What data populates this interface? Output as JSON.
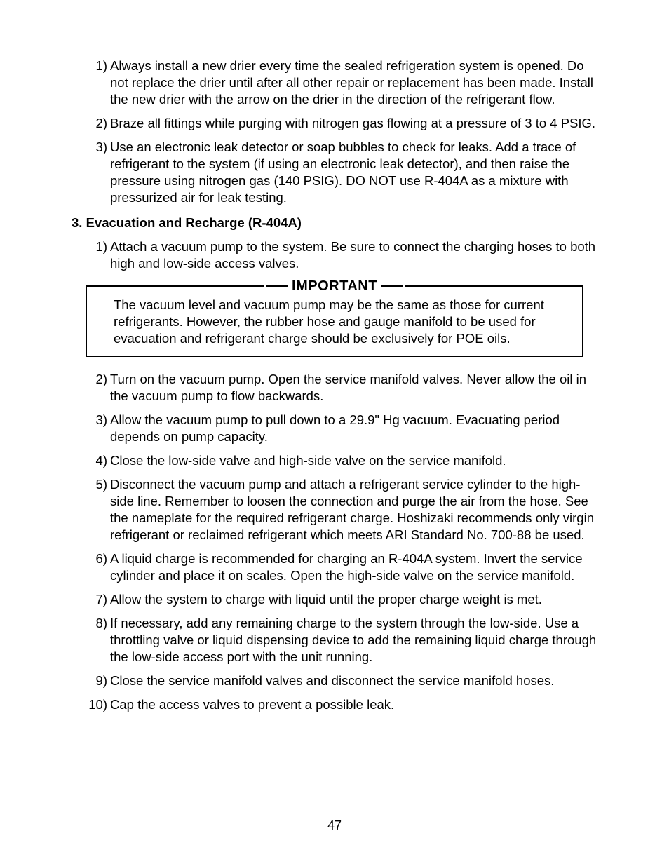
{
  "page_number": "47",
  "colors": {
    "text": "#000000",
    "background": "#ffffff",
    "rule": "#000000"
  },
  "typography": {
    "family": "Arial",
    "body_size_pt": 14,
    "heading_weight": "bold"
  },
  "top_list": [
    {
      "num": "1)",
      "text": "Always install a new drier every time the sealed refrigeration system is opened. Do not replace the drier until after all other repair or replacement has been made. Install the new drier with the arrow on the drier in the direction of the refrigerant flow."
    },
    {
      "num": "2)",
      "text": "Braze all fittings while purging with nitrogen gas flowing at a pressure of 3 to 4 PSIG."
    },
    {
      "num": "3)",
      "text": "Use an electronic leak detector or soap bubbles to check for leaks. Add a trace of refrigerant to the system (if using an electronic leak detector), and then raise the pressure using nitrogen gas (140 PSIG). DO NOT use R-404A as a mixture with pressurized air for leak testing."
    }
  ],
  "section_heading": "3. Evacuation and Recharge (R-404A)",
  "pre_box_list": [
    {
      "num": "1)",
      "text": "Attach a vacuum pump to the system. Be sure to connect the charging hoses to both high and low-side access valves."
    }
  ],
  "important": {
    "title": "IMPORTANT",
    "body": "The vacuum level and vacuum pump may be the same as those for current refrigerants. However, the rubber hose and gauge manifold to be used for evacuation and refrigerant charge should be exclusively for POE oils."
  },
  "post_box_list": [
    {
      "num": "2)",
      "text": "Turn on the vacuum pump. Open the service manifold valves. Never allow the oil in the vacuum pump to flow backwards."
    },
    {
      "num": "3)",
      "text": "Allow the vacuum pump to pull down to a 29.9\" Hg vacuum. Evacuating period depends on pump capacity."
    },
    {
      "num": "4)",
      "text": "Close the low-side valve and high-side valve on the service manifold."
    },
    {
      "num": "5)",
      "text": "Disconnect the vacuum pump and attach a refrigerant service cylinder to the high-side line. Remember to loosen the connection and purge the air from the hose. See the nameplate for the required refrigerant charge. Hoshizaki recommends only virgin refrigerant or reclaimed refrigerant which meets ARI Standard No. 700-88 be used."
    },
    {
      "num": "6)",
      "text": "A liquid charge is recommended for charging an R-404A system. Invert the service cylinder and place it on scales. Open the high-side valve on the service manifold."
    },
    {
      "num": "7)",
      "text": "Allow the system to charge with liquid until the proper charge weight is met."
    },
    {
      "num": "8)",
      "text": "If necessary, add any remaining charge to the system through the low-side. Use a throttling valve or liquid dispensing device to add the remaining liquid charge through the low-side access port with the unit running."
    },
    {
      "num": "9)",
      "text": "Close the service manifold valves and disconnect the service manifold hoses."
    },
    {
      "num": "10)",
      "text": "Cap the access valves to prevent a possible leak."
    }
  ]
}
